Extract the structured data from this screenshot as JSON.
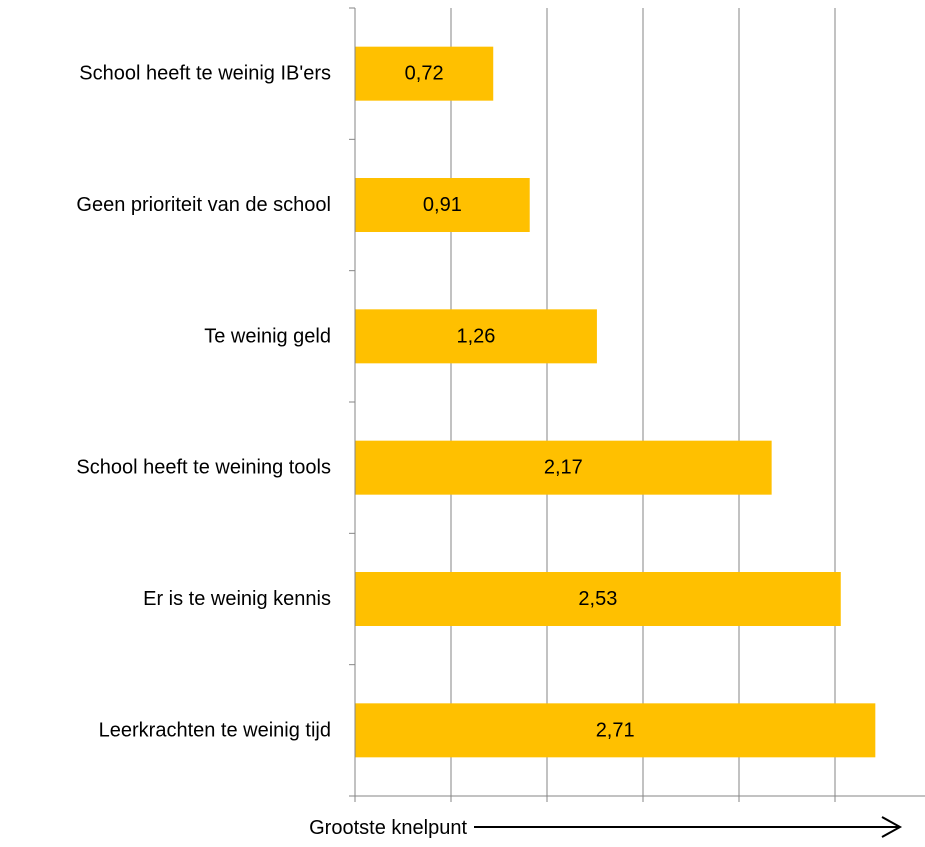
{
  "chart_data": {
    "type": "bar",
    "orientation": "horizontal",
    "categories": [
      "School heeft te weinig IB'ers",
      "Geen prioriteit van de school",
      "Te weinig geld",
      "School heeft te weining tools",
      "Er is te weinig kennis",
      "Leerkrachten te weinig tijd"
    ],
    "values": [
      0.72,
      0.91,
      1.26,
      2.17,
      2.53,
      2.71
    ],
    "value_labels": [
      "0,72",
      "0,91",
      "1,26",
      "2,17",
      "2,53",
      "2,71"
    ],
    "xlabel": "Grootste knelpunt",
    "xlim": [
      0,
      3
    ],
    "x_gridlines": [
      0,
      0.5,
      1,
      1.5,
      2,
      2.5
    ],
    "x_tick_labels_shown": false,
    "grid": true,
    "legend": "none",
    "bar_color": "#FFC000",
    "grid_color": "#868686",
    "axis_color": "#868686",
    "xlabel_arrow": true
  }
}
